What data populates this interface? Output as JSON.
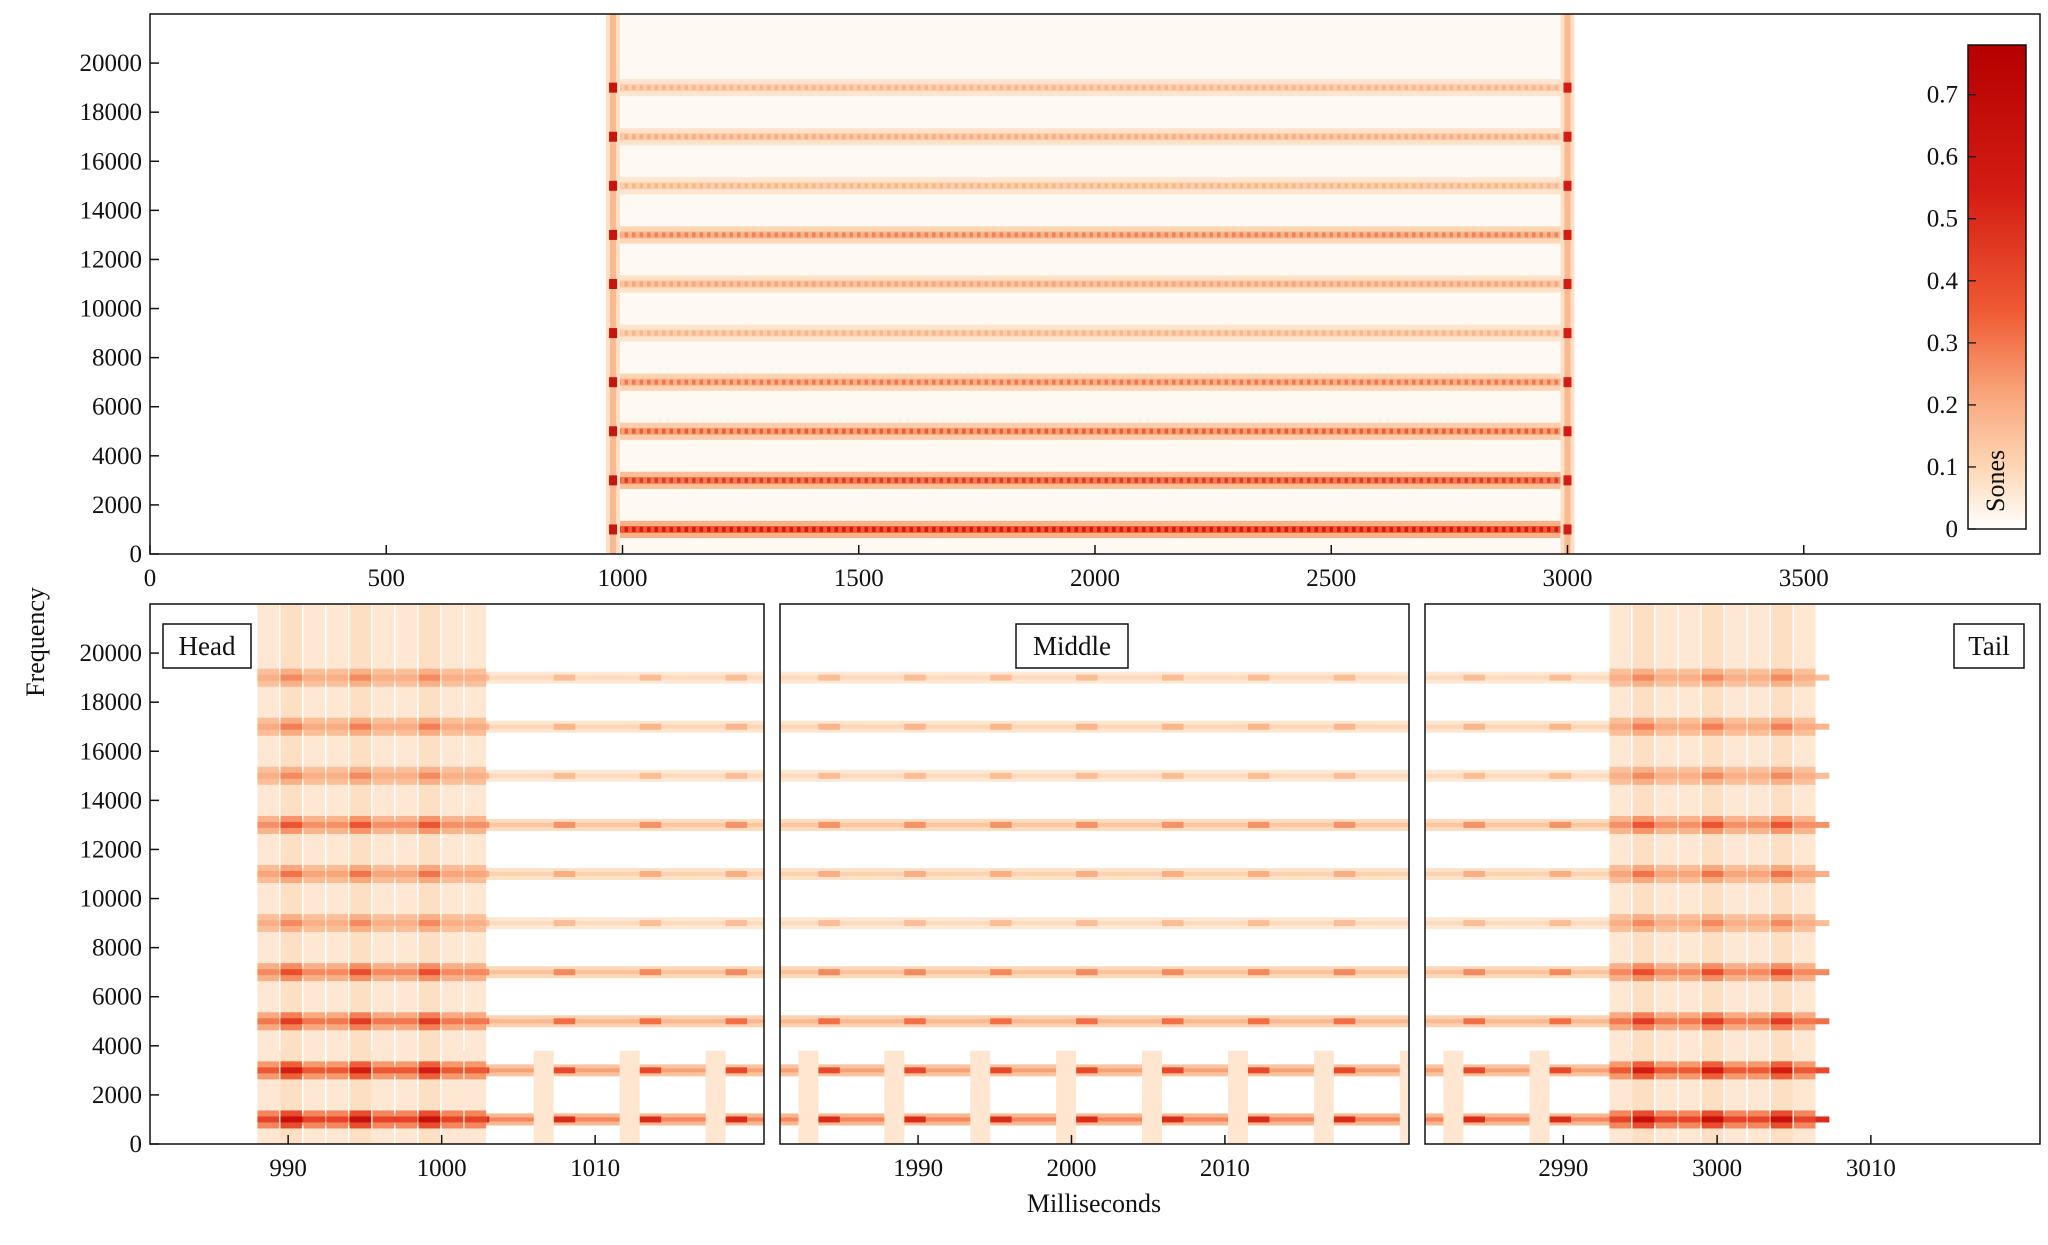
{
  "chart_data": [
    {
      "type": "heatmap",
      "panel": "overview",
      "title": "",
      "xlabel": "",
      "ylabel": "Frequency",
      "xlim": [
        0,
        4000
      ],
      "ylim": [
        0,
        22000
      ],
      "xticks": [
        0,
        500,
        1000,
        1500,
        2000,
        2500,
        3000,
        3500
      ],
      "yticks": [
        0,
        2000,
        4000,
        6000,
        8000,
        10000,
        12000,
        14000,
        16000,
        18000,
        20000
      ],
      "signal_range_ms": [
        980,
        3000
      ],
      "harmonic_bands_hz": [
        1000,
        3000,
        5000,
        7000,
        9000,
        11000,
        13000,
        15000,
        17000,
        19000
      ],
      "band_intensity_sones": [
        0.55,
        0.45,
        0.35,
        0.3,
        0.18,
        0.22,
        0.28,
        0.18,
        0.2,
        0.18
      ],
      "colorbar": {
        "label": "Sones",
        "range": [
          0,
          0.78
        ],
        "ticks": [
          0,
          0.1,
          0.2,
          0.3,
          0.4,
          0.5,
          0.6,
          0.7
        ],
        "colors": [
          "#ffffff",
          "#fdd9b8",
          "#f9a57a",
          "#ef5a33",
          "#d31c13",
          "#b50000"
        ]
      }
    },
    {
      "type": "heatmap",
      "panel": "head",
      "label": "Head",
      "xlim": [
        981,
        1021
      ],
      "ylim": [
        0,
        22000
      ],
      "xticks": [
        990,
        1000,
        1010
      ],
      "yticks": [
        0,
        2000,
        4000,
        6000,
        8000,
        10000,
        12000,
        14000,
        16000,
        18000,
        20000
      ],
      "onset_ms": 988,
      "dense_until_ms": 1002
    },
    {
      "type": "heatmap",
      "panel": "middle",
      "label": "Middle",
      "xlim": [
        1981,
        2022
      ],
      "ylim": [
        0,
        22000
      ],
      "xticks": [
        1990,
        2000,
        2010
      ]
    },
    {
      "type": "heatmap",
      "panel": "tail",
      "label": "Tail",
      "xlim": [
        2981,
        3021
      ],
      "ylim": [
        0,
        22000
      ],
      "xticks": [
        2990,
        3000,
        3010
      ],
      "dense_from_ms": 2993,
      "offset_ms": 3006
    }
  ],
  "shared_xlabel": "Milliseconds"
}
